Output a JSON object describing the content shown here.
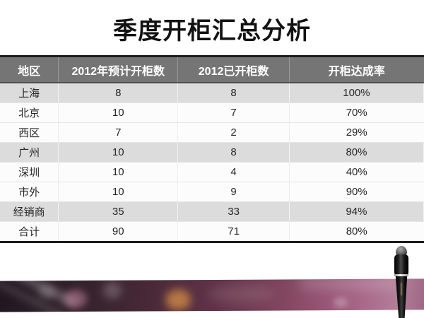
{
  "title": "季度开柜汇总分析",
  "table": {
    "columns": [
      "地区",
      "2012年预计开柜数",
      "2012已开柜数",
      "开柜达成率"
    ],
    "rows": [
      [
        "上海",
        "8",
        "8",
        "100%"
      ],
      [
        "北京",
        "10",
        "7",
        "70%"
      ],
      [
        "西区",
        "7",
        "2",
        "29%"
      ],
      [
        "广州",
        "10",
        "8",
        "80%"
      ],
      [
        "深圳",
        "10",
        "4",
        "40%"
      ],
      [
        "市外",
        "10",
        "9",
        "90%"
      ],
      [
        "经销商",
        "35",
        "33",
        "94%"
      ],
      [
        "合计",
        "90",
        "71",
        "80%"
      ]
    ],
    "shaded_rows": [
      0,
      3,
      6
    ]
  },
  "chart_data": {
    "type": "table",
    "title": "季度开柜汇总分析",
    "columns": [
      "地区",
      "2012年预计开柜数",
      "2012已开柜数",
      "开柜达成率"
    ],
    "rows": [
      [
        "上海",
        8,
        8,
        "100%"
      ],
      [
        "北京",
        10,
        7,
        "70%"
      ],
      [
        "西区",
        7,
        2,
        "29%"
      ],
      [
        "广州",
        10,
        8,
        "80%"
      ],
      [
        "深圳",
        10,
        4,
        "40%"
      ],
      [
        "市外",
        10,
        9,
        "90%"
      ],
      [
        "经销商",
        35,
        33,
        "94%"
      ],
      [
        "合计",
        90,
        71,
        "80%"
      ]
    ]
  },
  "colors": {
    "header_bg": "#757575",
    "header_text": "#ffffff",
    "stripe_bg": "#dcdcdc",
    "table_border": "#1c1c1c",
    "band_dark": "#201721",
    "band_light": "#b27e98",
    "bokeh_amber": "#eba046",
    "bokeh_pink": "#e196b4"
  },
  "decor": {
    "graphic": "mascara-pen"
  }
}
